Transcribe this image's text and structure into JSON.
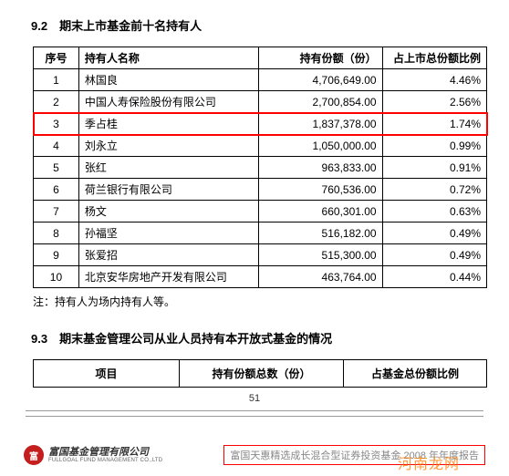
{
  "section92": {
    "title": "9.2　期末上市基金前十名持有人",
    "columns": [
      "序号",
      "持有人名称",
      "持有份额（份）",
      "占上市总份额比例"
    ],
    "rows": [
      [
        "1",
        "林国良",
        "4,706,649.00",
        "4.46%"
      ],
      [
        "2",
        "中国人寿保险股份有限公司",
        "2,700,854.00",
        "2.56%"
      ],
      [
        "3",
        "季占桂",
        "1,837,378.00",
        "1.74%"
      ],
      [
        "4",
        "刘永立",
        "1,050,000.00",
        "0.99%"
      ],
      [
        "5",
        "张红",
        "963,833.00",
        "0.91%"
      ],
      [
        "6",
        "荷兰银行有限公司",
        "760,536.00",
        "0.72%"
      ],
      [
        "7",
        "杨文",
        "660,301.00",
        "0.63%"
      ],
      [
        "8",
        "孙福坚",
        "516,182.00",
        "0.49%"
      ],
      [
        "9",
        "张爱招",
        "515,300.00",
        "0.49%"
      ],
      [
        "10",
        "北京安华房地产开发有限公司",
        "463,764.00",
        "0.44%"
      ]
    ],
    "highlight_row_index": 2,
    "note": "注：持有人为场内持有人等。"
  },
  "section93": {
    "title": "9.3　期末基金管理公司从业人员持有本开放式基金的情况",
    "columns": [
      "项目",
      "持有份额总数（份）",
      "占基金总份额比例"
    ]
  },
  "page_number": "51",
  "footer": {
    "logo_cn": "富国基金管理有限公司",
    "logo_en": "FULLGOAL FUND MANAGEMENT CO.,LTD",
    "right_text": "富国天惠精选成长混合型证券投资基金 2008 年年度报告"
  },
  "watermark": "河南龙网",
  "colors": {
    "highlight": "#ff0000",
    "watermark": "#ff7b00",
    "logo_bg": "#c41e1e"
  }
}
